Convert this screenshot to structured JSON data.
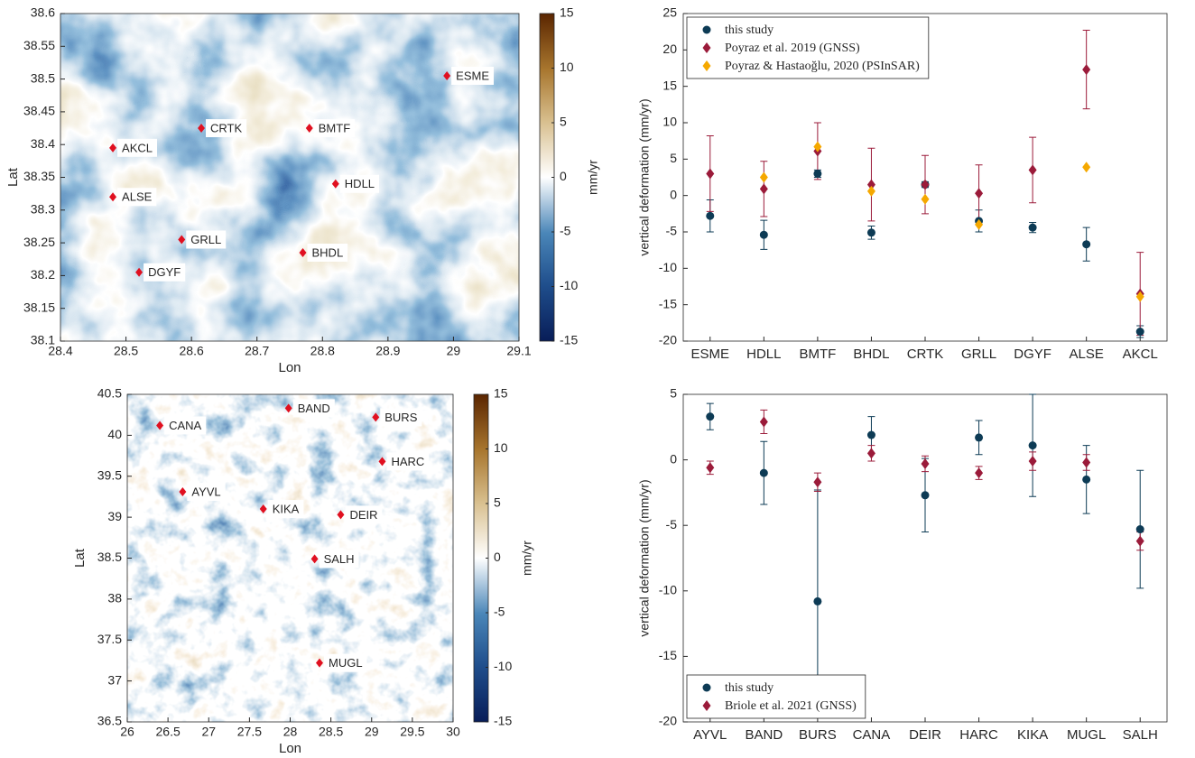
{
  "chart_data": [
    {
      "type": "map",
      "xlabel": "Lon",
      "ylabel": "Lat",
      "xlim": [
        28.4,
        29.1
      ],
      "xticks": [
        28.4,
        28.5,
        28.6,
        28.7,
        28.8,
        28.9,
        29,
        29.1
      ],
      "ylim": [
        38.1,
        38.6
      ],
      "yticks": [
        38.1,
        38.15,
        38.2,
        38.25,
        38.3,
        38.35,
        38.4,
        38.45,
        38.5,
        38.55,
        38.6
      ],
      "labels": [
        "ESME",
        "CRTK",
        "BMTF",
        "AKCL",
        "HDLL",
        "ALSE",
        "GRLL",
        "BHDL",
        "DGYF"
      ],
      "x": [
        28.99,
        28.615,
        28.78,
        28.48,
        28.82,
        28.48,
        28.585,
        28.77,
        28.52
      ],
      "y": [
        38.505,
        38.425,
        38.425,
        38.395,
        38.34,
        38.32,
        38.255,
        38.235,
        38.205
      ],
      "color": "#e01020",
      "clim": [
        -15,
        15
      ],
      "cticks": [
        -15,
        -10,
        -5,
        0,
        5,
        10,
        15
      ],
      "clabel": "mm/yr"
    },
    {
      "type": "errorbar",
      "ylabel": "vertical deformation (mm/yr)",
      "categories": [
        "ESME",
        "HDLL",
        "BMTF",
        "BHDL",
        "CRTK",
        "GRLL",
        "DGYF",
        "ALSE",
        "AKCL"
      ],
      "ylim": [
        -20,
        25
      ],
      "yticks": [
        -20,
        -15,
        -10,
        -5,
        0,
        5,
        10,
        15,
        20,
        25
      ],
      "legend": "upper left",
      "series": [
        {
          "name": "this study",
          "color": "#0d3b55",
          "marker": "circle",
          "values": [
            -2.8,
            -5.4,
            3.0,
            -5.1,
            1.5,
            -3.5,
            -4.4,
            -6.7,
            -18.7
          ],
          "errors": [
            2.2,
            2.0,
            0.5,
            0.9,
            0.4,
            1.5,
            0.7,
            2.3,
            0.8
          ]
        },
        {
          "name": "Poyraz et al. 2019 (GNSS)",
          "color": "#9b1b3a",
          "marker": "diamond",
          "values": [
            3.0,
            0.9,
            6.1,
            1.5,
            1.5,
            0.3,
            3.5,
            17.3,
            -13.5
          ],
          "errors": [
            5.2,
            3.8,
            3.9,
            5.0,
            4.0,
            3.9,
            4.5,
            5.4,
            5.7
          ]
        },
        {
          "name": "Poyraz & Hastaoğlu, 2020 (PSInSAR)",
          "color": "#f5a800",
          "marker": "diamond",
          "values": [
            null,
            2.5,
            6.7,
            0.6,
            -0.5,
            -4.0,
            null,
            3.9,
            -13.9
          ]
        }
      ]
    },
    {
      "type": "map",
      "xlabel": "Lon",
      "ylabel": "Lat",
      "xlim": [
        26,
        30
      ],
      "xticks": [
        26,
        26.5,
        27,
        27.5,
        28,
        28.5,
        29,
        29.5,
        30
      ],
      "ylim": [
        36.5,
        40.5
      ],
      "yticks": [
        36.5,
        37,
        37.5,
        38,
        38.5,
        39,
        39.5,
        40,
        40.5
      ],
      "labels": [
        "CANA",
        "BAND",
        "BURS",
        "HARC",
        "AYVL",
        "KIKA",
        "DEIR",
        "SALH",
        "MUGL"
      ],
      "x": [
        26.4,
        27.98,
        29.05,
        29.13,
        26.68,
        27.67,
        28.62,
        28.3,
        28.36
      ],
      "y": [
        40.12,
        40.33,
        40.22,
        39.68,
        39.31,
        39.1,
        39.03,
        38.49,
        37.22
      ],
      "color": "#e01020",
      "clim": [
        -15,
        15
      ],
      "cticks": [
        -15,
        -10,
        -5,
        0,
        5,
        10,
        15
      ],
      "clabel": "mm/yr"
    },
    {
      "type": "errorbar",
      "ylabel": "vertical deformation (mm/yr)",
      "categories": [
        "AYVL",
        "BAND",
        "BURS",
        "CANA",
        "DEIR",
        "HARC",
        "KIKA",
        "MUGL",
        "SALH"
      ],
      "ylim": [
        -20,
        5
      ],
      "yticks": [
        -20,
        -15,
        -10,
        -5,
        0,
        5
      ],
      "legend": "lower left",
      "series": [
        {
          "name": "this study",
          "color": "#0d3b55",
          "marker": "circle",
          "values": [
            3.3,
            -1.0,
            -10.8,
            1.9,
            -2.7,
            1.7,
            1.1,
            -1.5,
            -5.3
          ],
          "errors": [
            1.0,
            2.4,
            8.5,
            1.4,
            2.8,
            1.3,
            3.9,
            2.6,
            4.5
          ]
        },
        {
          "name": "Briole et al. 2021 (GNSS)",
          "color": "#9b1b3a",
          "marker": "diamond",
          "values": [
            -0.6,
            2.9,
            -1.7,
            0.5,
            -0.3,
            -1.0,
            -0.1,
            -0.2,
            -6.2
          ],
          "errors": [
            0.5,
            0.9,
            0.7,
            0.6,
            0.6,
            0.5,
            0.7,
            0.6,
            0.7
          ]
        }
      ]
    }
  ]
}
